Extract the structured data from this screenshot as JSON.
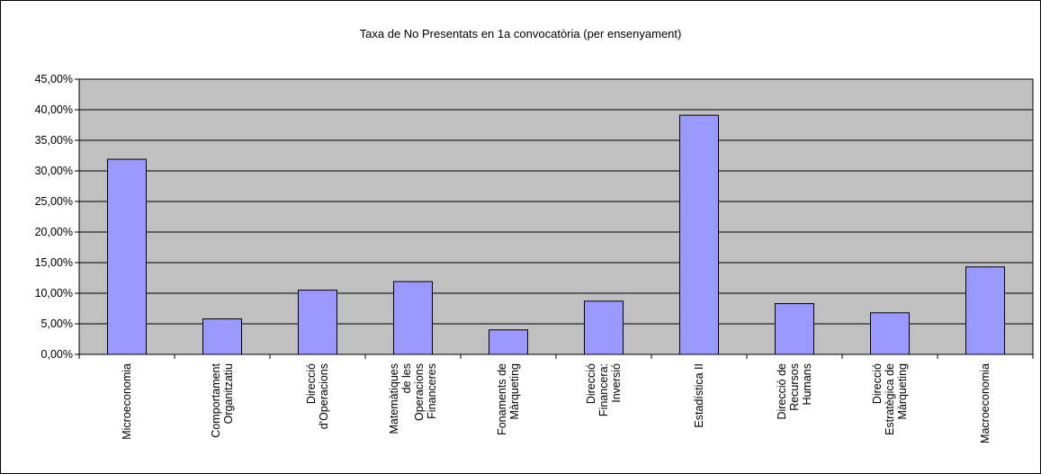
{
  "chart_data": {
    "type": "bar",
    "title": "Taxa de No Presentats en 1a convocatòria (per ensenyament)",
    "xlabel": "",
    "ylabel": "",
    "ylim": [
      0,
      0.45
    ],
    "yticks": [
      "0,00%",
      "5,00%",
      "10,00%",
      "15,00%",
      "20,00%",
      "25,00%",
      "30,00%",
      "35,00%",
      "40,00%",
      "45,00%"
    ],
    "grid": true,
    "legend": "none",
    "categories": [
      [
        "Microeconomia"
      ],
      [
        "Comportament",
        "Organitzatiu"
      ],
      [
        "Direcció",
        "d'Operacions"
      ],
      [
        "Matemàtiques",
        "de les",
        "Operacions",
        "Financeres"
      ],
      [
        "Fonaments de",
        "Màrqueting"
      ],
      [
        "Direcció",
        "Financera:",
        "Inversió"
      ],
      [
        "Estadística II"
      ],
      [
        "Direcció de",
        "Recursos",
        "Humans"
      ],
      [
        "Direcció",
        "Estratègica de",
        "Màrqueting"
      ],
      [
        "Macroeconomia"
      ]
    ],
    "values": [
      0.319,
      0.058,
      0.105,
      0.119,
      0.04,
      0.087,
      0.391,
      0.083,
      0.068,
      0.143
    ],
    "colors": {
      "bar": "#9999ff",
      "plot_bg": "#c0c0c0",
      "grid": "#000000",
      "border": "#000000"
    }
  }
}
